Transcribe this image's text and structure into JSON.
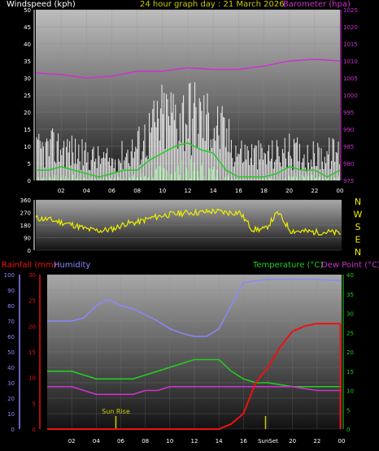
{
  "header": {
    "wind_label": "Windspeed (kph)",
    "title": "24 hour graph day : 21 March 2026",
    "baro_label": "Barometer (hpa)"
  },
  "colors": {
    "wind": "#ffffff",
    "gust_avg": "#22cc22",
    "barometer": "#cc33cc",
    "direction": "#eeee00",
    "rain": "#ee1111",
    "humidity": "#8888ff",
    "temperature": "#22cc22",
    "dewpoint": "#cc33cc",
    "sun_events": "#cccc00"
  },
  "charts": [
    {
      "id": "wind-baro",
      "type": "line",
      "x_ticks": [
        "02",
        "04",
        "06",
        "08",
        "10",
        "12",
        "14",
        "16",
        "18",
        "20",
        "22",
        "00"
      ],
      "y_left_ticks": [
        "0",
        "5",
        "10",
        "15",
        "20",
        "25",
        "30",
        "35",
        "40",
        "45",
        "50"
      ],
      "y_right_ticks": [
        "975",
        "980",
        "985",
        "990",
        "995",
        "1000",
        "1005",
        "1010",
        "1015",
        "1020",
        "1025"
      ],
      "ylim_left": [
        0,
        50
      ],
      "ylim_right": [
        975,
        1025
      ],
      "series": [
        {
          "key": "barometer",
          "x": [
            0,
            2,
            4,
            6,
            8,
            10,
            12,
            14,
            16,
            18,
            20,
            22,
            24
          ],
          "y": [
            1006.5,
            1006,
            1005,
            1005.5,
            1007,
            1007,
            1008,
            1007.5,
            1007.5,
            1008.5,
            1010,
            1010.5,
            1010
          ]
        },
        {
          "key": "gust",
          "x": [
            0,
            2,
            4,
            6,
            8,
            10,
            12,
            14,
            16,
            18,
            20,
            22,
            24
          ],
          "y": [
            12,
            14,
            10,
            8,
            14,
            26,
            28,
            24,
            12,
            10,
            12,
            10,
            12
          ]
        },
        {
          "key": "average",
          "x": [
            0,
            1,
            2,
            3,
            4,
            5,
            6,
            7,
            8,
            9,
            10,
            11,
            12,
            13,
            14,
            15,
            16,
            17,
            18,
            19,
            20,
            21,
            22,
            23,
            24
          ],
          "y": [
            3,
            3,
            4,
            3,
            2,
            1,
            2,
            3,
            3,
            6,
            8,
            10,
            11,
            9,
            8,
            3,
            1,
            1,
            1,
            2,
            4,
            3,
            3,
            1,
            3
          ]
        }
      ]
    },
    {
      "id": "direction",
      "type": "line",
      "x_ticks": [],
      "y_left_ticks": [
        "0",
        "90",
        "180",
        "270",
        "360"
      ],
      "y_right_ticks": [
        "N",
        "W",
        "S",
        "E",
        "N"
      ],
      "ylim_left": [
        0,
        360
      ],
      "series": [
        {
          "key": "direction",
          "x": [
            0,
            1,
            2,
            3,
            4,
            5,
            6,
            7,
            8,
            9,
            10,
            11,
            12,
            13,
            14,
            15,
            16,
            17,
            18,
            19,
            20,
            21,
            22,
            23,
            24
          ],
          "y": [
            230,
            220,
            200,
            180,
            150,
            140,
            150,
            190,
            200,
            230,
            250,
            260,
            270,
            270,
            280,
            270,
            270,
            150,
            150,
            270,
            140,
            135,
            130,
            130,
            120
          ]
        }
      ]
    },
    {
      "id": "rain-hum-temp",
      "type": "line",
      "x_ticks": [
        "02",
        "04",
        "06",
        "08",
        "10",
        "12",
        "14",
        "16",
        "SunSet",
        "20",
        "22",
        "00"
      ],
      "y_rain_ticks": [
        "0",
        "5",
        "10",
        "15",
        "20",
        "25",
        "30"
      ],
      "y_hum_ticks": [
        "0",
        "10",
        "20",
        "30",
        "40",
        "50",
        "60",
        "70",
        "80",
        "90",
        "100"
      ],
      "y_temp_ticks": [
        "0",
        "5",
        "10",
        "15",
        "20",
        "25",
        "30",
        "35",
        "40"
      ],
      "ylim_rain": [
        0,
        30
      ],
      "ylim_humidity": [
        0,
        100
      ],
      "ylim_temp": [
        0,
        40
      ],
      "labels": {
        "rainfall": "Rainfall (mm)",
        "humidity": "Humidity",
        "temperature": "Temperature (°C)",
        "dewpoint": "Dew Point (°C)"
      },
      "annotations": {
        "sunrise": "Sun Rise"
      },
      "series": [
        {
          "key": "humidity",
          "x": [
            0,
            1,
            2,
            3,
            4,
            5,
            6,
            7,
            8,
            9,
            10,
            11,
            12,
            13,
            14,
            15,
            16,
            17,
            18,
            20,
            22,
            24
          ],
          "y": [
            70,
            70,
            70,
            72,
            80,
            84,
            80,
            78,
            74,
            70,
            65,
            62,
            60,
            60,
            65,
            80,
            95,
            96,
            97,
            97,
            97,
            96
          ]
        },
        {
          "key": "temperature",
          "x": [
            0,
            1,
            2,
            3,
            4,
            5,
            6,
            7,
            8,
            9,
            10,
            11,
            12,
            13,
            14,
            15,
            16,
            17,
            18,
            20,
            22,
            24
          ],
          "y": [
            15,
            15,
            15,
            14,
            13,
            13,
            13,
            13,
            14,
            15,
            16,
            17,
            18,
            18,
            18,
            15,
            13,
            12,
            12,
            11,
            11,
            11
          ]
        },
        {
          "key": "dewpoint",
          "x": [
            0,
            1,
            2,
            3,
            4,
            5,
            6,
            7,
            8,
            9,
            10,
            11,
            12,
            13,
            14,
            15,
            16,
            17,
            18,
            20,
            22,
            24
          ],
          "y": [
            11,
            11,
            11,
            10,
            9,
            9,
            9,
            9,
            10,
            10,
            11,
            11,
            11,
            11,
            11,
            11,
            11,
            11,
            11,
            11,
            10,
            10
          ]
        },
        {
          "key": "rain",
          "x": [
            0,
            14,
            15,
            16,
            16.5,
            17,
            18,
            19,
            20,
            21,
            22,
            23.9
          ],
          "y": [
            0,
            0,
            1,
            3,
            6,
            9,
            12,
            16,
            19,
            20,
            20.5,
            20.5
          ]
        }
      ]
    }
  ]
}
